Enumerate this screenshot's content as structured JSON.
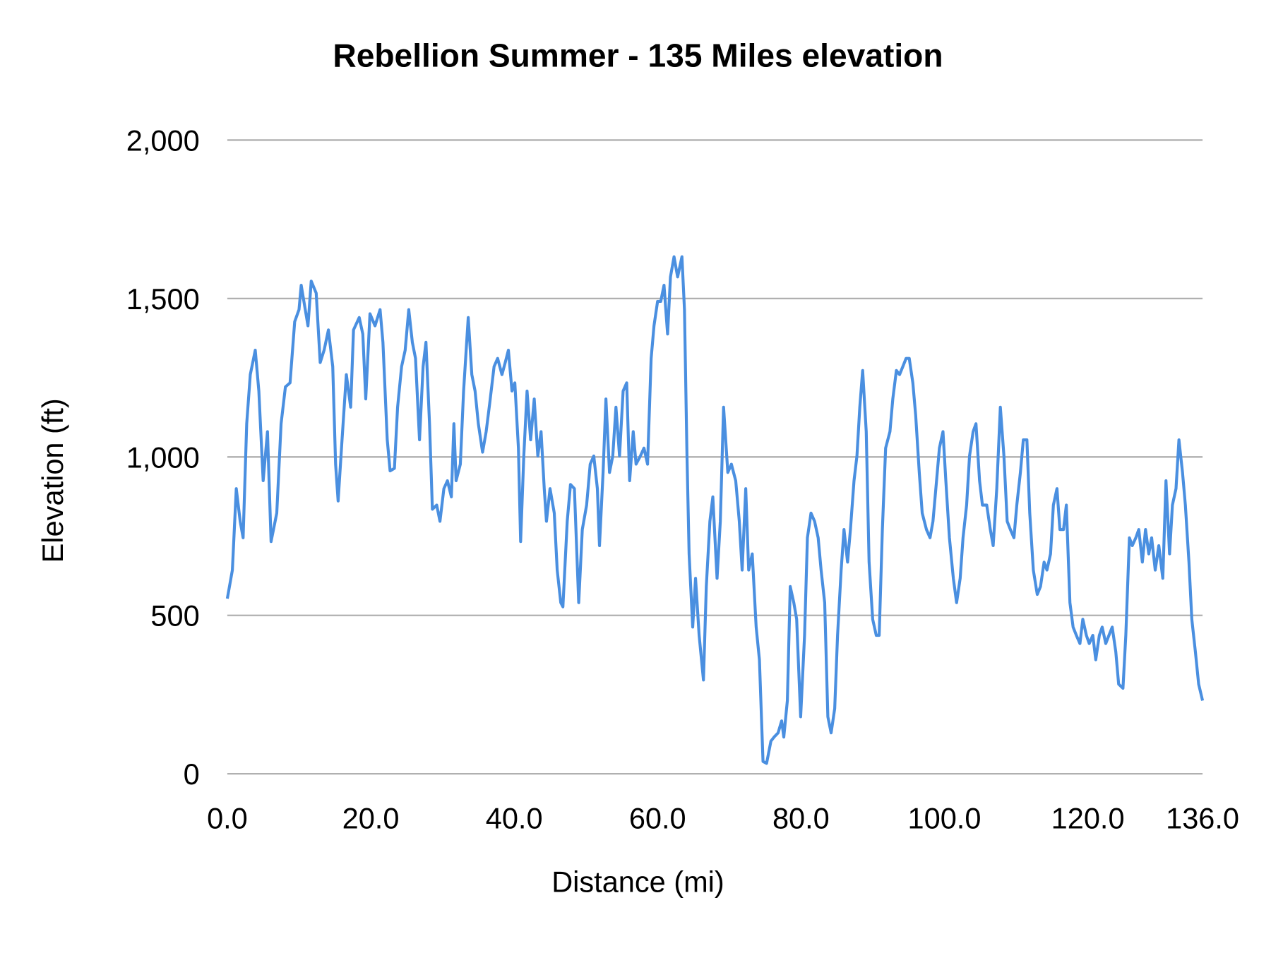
{
  "chart_data": {
    "type": "line",
    "title": "Rebellion Summer - 135 Miles elevation",
    "xlabel": "Distance (mi)",
    "ylabel": "Elevation (ft)",
    "xlim": [
      0,
      136
    ],
    "ylim": [
      0,
      2000
    ],
    "x_ticks": [
      "0.0",
      "20.0",
      "40.0",
      "60.0",
      "80.0",
      "100.0",
      "120.0",
      "136.0"
    ],
    "x_tick_values": [
      0,
      20,
      40,
      60,
      80,
      100,
      120,
      136
    ],
    "y_ticks": [
      "0",
      "500",
      "1,000",
      "1,500",
      "2,000"
    ],
    "y_tick_values": [
      0,
      500,
      1000,
      1500,
      2000
    ],
    "grid": "horizontal",
    "legend": "none",
    "line_color": "#4a8fe0",
    "grid_color": "#b0b0b0",
    "series": [
      {
        "points": [
          [
            0,
            553
          ],
          [
            0.7,
            643
          ],
          [
            1.25,
            900
          ],
          [
            1.8,
            797
          ],
          [
            2.2,
            745
          ],
          [
            2.7,
            1105
          ],
          [
            3.2,
            1260
          ],
          [
            3.9,
            1337
          ],
          [
            4.4,
            1208
          ],
          [
            5.0,
            925
          ],
          [
            5.6,
            1080
          ],
          [
            6.1,
            733
          ],
          [
            6.9,
            823
          ],
          [
            7.5,
            1105
          ],
          [
            8.1,
            1221
          ],
          [
            8.75,
            1234
          ],
          [
            9.4,
            1427
          ],
          [
            10.0,
            1465
          ],
          [
            10.3,
            1542
          ],
          [
            11.25,
            1414
          ],
          [
            11.7,
            1555
          ],
          [
            12.4,
            1517
          ],
          [
            12.95,
            1298
          ],
          [
            13.5,
            1337
          ],
          [
            14.1,
            1401
          ],
          [
            14.7,
            1285
          ],
          [
            15.1,
            977
          ],
          [
            15.45,
            861
          ],
          [
            16.0,
            1054
          ],
          [
            16.6,
            1260
          ],
          [
            17.2,
            1157
          ],
          [
            17.6,
            1401
          ],
          [
            18.4,
            1440
          ],
          [
            18.9,
            1388
          ],
          [
            19.3,
            1183
          ],
          [
            19.9,
            1452
          ],
          [
            20.6,
            1414
          ],
          [
            21.3,
            1465
          ],
          [
            21.7,
            1362
          ],
          [
            22.3,
            1054
          ],
          [
            22.7,
            956
          ],
          [
            23.3,
            964
          ],
          [
            23.75,
            1157
          ],
          [
            24.3,
            1285
          ],
          [
            24.8,
            1337
          ],
          [
            25.3,
            1465
          ],
          [
            25.8,
            1362
          ],
          [
            26.25,
            1311
          ],
          [
            26.8,
            1054
          ],
          [
            27.3,
            1285
          ],
          [
            27.7,
            1362
          ],
          [
            28.2,
            1105
          ],
          [
            28.6,
            835
          ],
          [
            29.2,
            848
          ],
          [
            29.65,
            797
          ],
          [
            30.2,
            900
          ],
          [
            30.7,
            925
          ],
          [
            31.25,
            874
          ],
          [
            31.6,
            1105
          ],
          [
            31.9,
            925
          ],
          [
            32.5,
            977
          ],
          [
            32.95,
            1208
          ],
          [
            33.6,
            1440
          ],
          [
            34.1,
            1260
          ],
          [
            34.55,
            1208
          ],
          [
            35.0,
            1105
          ],
          [
            35.6,
            1015
          ],
          [
            36.1,
            1080
          ],
          [
            36.6,
            1170
          ],
          [
            37.2,
            1285
          ],
          [
            37.7,
            1311
          ],
          [
            38.3,
            1260
          ],
          [
            38.75,
            1298
          ],
          [
            39.2,
            1337
          ],
          [
            39.7,
            1208
          ],
          [
            40.1,
            1234
          ],
          [
            40.6,
            1028
          ],
          [
            40.9,
            733
          ],
          [
            41.35,
            1003
          ],
          [
            41.8,
            1208
          ],
          [
            42.3,
            1054
          ],
          [
            42.8,
            1183
          ],
          [
            43.3,
            1003
          ],
          [
            43.75,
            1080
          ],
          [
            44.2,
            900
          ],
          [
            44.5,
            797
          ],
          [
            45.0,
            900
          ],
          [
            45.6,
            823
          ],
          [
            46.0,
            643
          ],
          [
            46.5,
            540
          ],
          [
            46.8,
            527
          ],
          [
            47.4,
            797
          ],
          [
            47.85,
            913
          ],
          [
            48.4,
            900
          ],
          [
            49.0,
            540
          ],
          [
            49.5,
            771
          ],
          [
            50.1,
            848
          ],
          [
            50.6,
            977
          ],
          [
            51.1,
            1003
          ],
          [
            51.6,
            900
          ],
          [
            51.9,
            720
          ],
          [
            52.4,
            951
          ],
          [
            52.8,
            1183
          ],
          [
            53.3,
            951
          ],
          [
            53.75,
            1003
          ],
          [
            54.2,
            1157
          ],
          [
            54.7,
            1003
          ],
          [
            55.2,
            1208
          ],
          [
            55.7,
            1234
          ],
          [
            56.1,
            925
          ],
          [
            56.6,
            1080
          ],
          [
            57.0,
            977
          ],
          [
            57.6,
            1003
          ],
          [
            58.1,
            1028
          ],
          [
            58.6,
            977
          ],
          [
            59.1,
            1311
          ],
          [
            59.5,
            1414
          ],
          [
            60.0,
            1491
          ],
          [
            60.45,
            1491
          ],
          [
            60.9,
            1542
          ],
          [
            61.4,
            1388
          ],
          [
            61.8,
            1568
          ],
          [
            62.3,
            1632
          ],
          [
            62.8,
            1568
          ],
          [
            63.4,
            1632
          ],
          [
            63.75,
            1465
          ],
          [
            64.1,
            1003
          ],
          [
            64.4,
            694
          ],
          [
            64.9,
            463
          ],
          [
            65.3,
            617
          ],
          [
            65.8,
            437
          ],
          [
            66.4,
            296
          ],
          [
            66.8,
            591
          ],
          [
            67.3,
            797
          ],
          [
            67.7,
            874
          ],
          [
            68.3,
            617
          ],
          [
            68.75,
            797
          ],
          [
            69.2,
            1157
          ],
          [
            69.8,
            951
          ],
          [
            70.3,
            977
          ],
          [
            70.9,
            925
          ],
          [
            71.4,
            797
          ],
          [
            71.8,
            643
          ],
          [
            72.3,
            900
          ],
          [
            72.7,
            643
          ],
          [
            73.2,
            694
          ],
          [
            73.75,
            463
          ],
          [
            74.2,
            360
          ],
          [
            74.7,
            39
          ],
          [
            75.2,
            33
          ],
          [
            75.8,
            103
          ],
          [
            76.25,
            116
          ],
          [
            76.8,
            129
          ],
          [
            77.3,
            167
          ],
          [
            77.6,
            116
          ],
          [
            78.1,
            231
          ],
          [
            78.5,
            591
          ],
          [
            79.0,
            540
          ],
          [
            79.4,
            488
          ],
          [
            79.95,
            180
          ],
          [
            80.5,
            437
          ],
          [
            80.9,
            745
          ],
          [
            81.4,
            823
          ],
          [
            81.9,
            797
          ],
          [
            82.4,
            745
          ],
          [
            82.8,
            643
          ],
          [
            83.3,
            540
          ],
          [
            83.75,
            180
          ],
          [
            84.2,
            129
          ],
          [
            84.7,
            206
          ],
          [
            85.1,
            437
          ],
          [
            85.6,
            643
          ],
          [
            86.0,
            771
          ],
          [
            86.5,
            668
          ],
          [
            86.9,
            771
          ],
          [
            87.4,
            925
          ],
          [
            87.8,
            1003
          ],
          [
            88.2,
            1157
          ],
          [
            88.6,
            1273
          ],
          [
            89.1,
            1080
          ],
          [
            89.5,
            668
          ],
          [
            90.0,
            488
          ],
          [
            90.5,
            437
          ],
          [
            90.9,
            437
          ],
          [
            91.35,
            771
          ],
          [
            91.8,
            1028
          ],
          [
            92.4,
            1080
          ],
          [
            92.8,
            1183
          ],
          [
            93.3,
            1273
          ],
          [
            93.75,
            1260
          ],
          [
            94.2,
            1285
          ],
          [
            94.66,
            1311
          ],
          [
            95.1,
            1311
          ],
          [
            95.6,
            1234
          ],
          [
            96.0,
            1131
          ],
          [
            96.5,
            951
          ],
          [
            96.9,
            823
          ],
          [
            97.5,
            771
          ],
          [
            98.0,
            745
          ],
          [
            98.4,
            797
          ],
          [
            98.9,
            925
          ],
          [
            99.3,
            1028
          ],
          [
            99.8,
            1080
          ],
          [
            100.2,
            925
          ],
          [
            100.7,
            745
          ],
          [
            101.25,
            617
          ],
          [
            101.7,
            540
          ],
          [
            102.2,
            617
          ],
          [
            102.6,
            745
          ],
          [
            103.1,
            848
          ],
          [
            103.5,
            1003
          ],
          [
            104.0,
            1080
          ],
          [
            104.4,
            1105
          ],
          [
            104.9,
            925
          ],
          [
            105.3,
            848
          ],
          [
            105.9,
            848
          ],
          [
            106.4,
            771
          ],
          [
            106.8,
            720
          ],
          [
            107.3,
            900
          ],
          [
            107.8,
            1157
          ],
          [
            108.3,
            1003
          ],
          [
            108.75,
            797
          ],
          [
            109.2,
            771
          ],
          [
            109.7,
            745
          ],
          [
            110.1,
            848
          ],
          [
            110.6,
            951
          ],
          [
            111.0,
            1054
          ],
          [
            111.5,
            1054
          ],
          [
            111.9,
            823
          ],
          [
            112.4,
            643
          ],
          [
            112.95,
            566
          ],
          [
            113.4,
            591
          ],
          [
            113.9,
            668
          ],
          [
            114.3,
            643
          ],
          [
            114.8,
            694
          ],
          [
            115.2,
            848
          ],
          [
            115.7,
            900
          ],
          [
            116.1,
            771
          ],
          [
            116.6,
            771
          ],
          [
            117.0,
            848
          ],
          [
            117.5,
            540
          ],
          [
            117.95,
            463
          ],
          [
            118.4,
            437
          ],
          [
            118.9,
            411
          ],
          [
            119.3,
            488
          ],
          [
            119.8,
            437
          ],
          [
            120.2,
            411
          ],
          [
            120.7,
            437
          ],
          [
            121.1,
            360
          ],
          [
            121.6,
            437
          ],
          [
            122.0,
            463
          ],
          [
            122.5,
            411
          ],
          [
            122.95,
            437
          ],
          [
            123.4,
            463
          ],
          [
            123.9,
            385
          ],
          [
            124.3,
            283
          ],
          [
            124.9,
            270
          ],
          [
            125.3,
            437
          ],
          [
            125.8,
            745
          ],
          [
            126.2,
            720
          ],
          [
            126.7,
            745
          ],
          [
            127.1,
            771
          ],
          [
            127.6,
            668
          ],
          [
            128.05,
            771
          ],
          [
            128.5,
            694
          ],
          [
            128.9,
            745
          ],
          [
            129.4,
            643
          ],
          [
            129.9,
            720
          ],
          [
            130.45,
            617
          ],
          [
            130.9,
            925
          ],
          [
            131.4,
            694
          ],
          [
            131.8,
            848
          ],
          [
            132.3,
            900
          ],
          [
            132.7,
            1054
          ],
          [
            133.2,
            951
          ],
          [
            133.6,
            848
          ],
          [
            134.1,
            668
          ],
          [
            134.5,
            488
          ],
          [
            135.0,
            385
          ],
          [
            135.45,
            283
          ],
          [
            136.0,
            231
          ]
        ]
      }
    ]
  }
}
